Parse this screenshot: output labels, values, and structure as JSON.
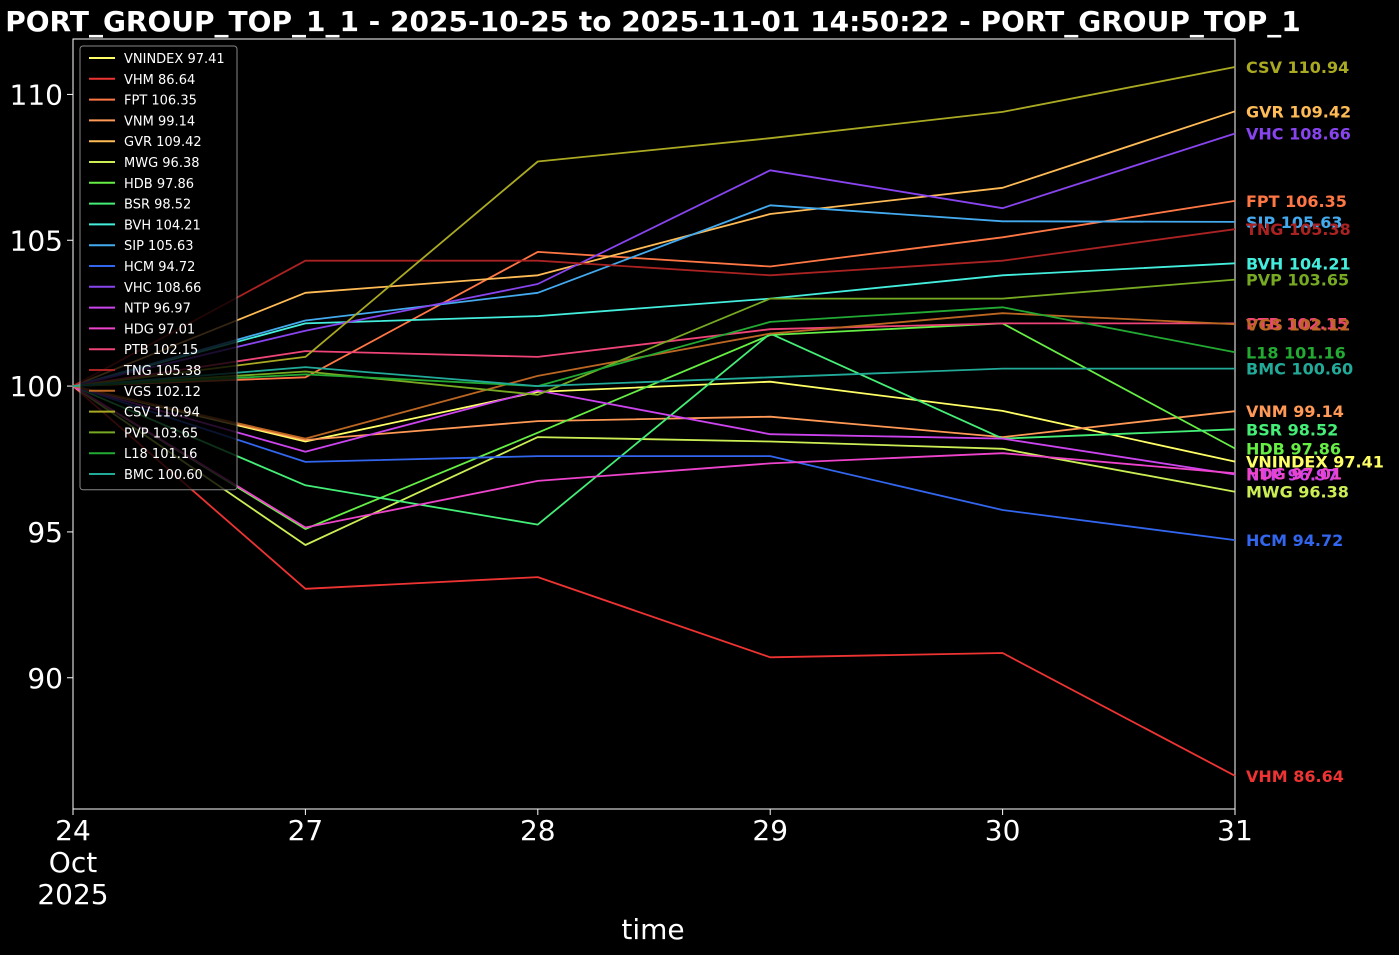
{
  "chart_data": {
    "type": "line",
    "title": "PORT_GROUP_TOP_1_1 - 2025-10-25 to 2025-11-01 14:50:22 - PORT_GROUP_TOP_1",
    "xlabel": "time",
    "ylabel": "",
    "x": [
      "2025-10-24",
      "2025-10-27",
      "2025-10-28",
      "2025-10-29",
      "2025-10-30",
      "2025-10-31"
    ],
    "x_tick_labels": [
      "24\nOct\n2025",
      "27",
      "28",
      "29",
      "30",
      "31"
    ],
    "ylim": [
      85.5,
      111.9
    ],
    "y_ticks": [
      90,
      95,
      100,
      105,
      110
    ],
    "grid": false,
    "legend_position": "top-left",
    "series": [
      {
        "name": "VNINDEX",
        "label": "VNINDEX 97.41",
        "color": "#ffff66",
        "values": [
          100,
          98.1,
          99.8,
          100.15,
          99.15,
          97.41
        ]
      },
      {
        "name": "VHM",
        "label": "VHM 86.64",
        "color": "#ee3333",
        "values": [
          100,
          93.05,
          93.45,
          90.7,
          90.85,
          86.64
        ]
      },
      {
        "name": "FPT",
        "label": "FPT 106.35",
        "color": "#ff7744",
        "values": [
          100,
          100.3,
          104.6,
          104.1,
          105.1,
          106.35
        ]
      },
      {
        "name": "VNM",
        "label": "VNM 99.14",
        "color": "#ff9955",
        "values": [
          100,
          98.15,
          98.8,
          98.95,
          98.25,
          99.14
        ]
      },
      {
        "name": "GVR",
        "label": "GVR 109.42",
        "color": "#ffbb55",
        "values": [
          100,
          103.2,
          103.8,
          105.9,
          106.8,
          109.42
        ]
      },
      {
        "name": "MWG",
        "label": "MWG 96.38",
        "color": "#ccee55",
        "values": [
          100,
          94.55,
          98.25,
          98.1,
          97.85,
          96.38
        ]
      },
      {
        "name": "HDB",
        "label": "HDB 97.86",
        "color": "#66ee44",
        "values": [
          100,
          95.1,
          98.4,
          101.75,
          102.15,
          97.86
        ]
      },
      {
        "name": "BSR",
        "label": "BSR 98.52",
        "color": "#44ee77",
        "values": [
          100,
          96.6,
          95.25,
          101.8,
          98.2,
          98.52
        ]
      },
      {
        "name": "BVH",
        "label": "BVH 104.21",
        "color": "#44eedd",
        "values": [
          100,
          102.15,
          102.4,
          103.0,
          103.8,
          104.21
        ]
      },
      {
        "name": "SIP",
        "label": "SIP 105.63",
        "color": "#44aaee",
        "values": [
          100,
          102.25,
          103.2,
          106.2,
          105.65,
          105.63
        ]
      },
      {
        "name": "HCM",
        "label": "HCM 94.72",
        "color": "#3366ee",
        "values": [
          100,
          97.4,
          97.6,
          97.6,
          95.75,
          94.72
        ]
      },
      {
        "name": "VHC",
        "label": "VHC 108.66",
        "color": "#8844ee",
        "values": [
          100,
          101.9,
          103.5,
          107.4,
          106.1,
          108.66
        ]
      },
      {
        "name": "NTP",
        "label": "NTP 96.97",
        "color": "#cc44ee",
        "values": [
          100,
          97.75,
          99.85,
          98.35,
          98.2,
          96.97
        ]
      },
      {
        "name": "HDG",
        "label": "HDG 97.01",
        "color": "#ee44cc",
        "values": [
          100,
          95.15,
          96.75,
          97.35,
          97.7,
          97.01
        ]
      },
      {
        "name": "PTB",
        "label": "PTB 102.15",
        "color": "#ee4477",
        "values": [
          100,
          101.2,
          101.0,
          101.95,
          102.15,
          102.15
        ]
      },
      {
        "name": "TNG",
        "label": "TNG 105.38",
        "color": "#aa2222",
        "values": [
          100,
          104.3,
          104.3,
          103.8,
          104.3,
          105.38
        ]
      },
      {
        "name": "VGS",
        "label": "VGS 102.12",
        "color": "#bb6622",
        "values": [
          100,
          98.2,
          100.35,
          101.8,
          102.5,
          102.12
        ]
      },
      {
        "name": "CSV",
        "label": "CSV 110.94",
        "color": "#aaaa22",
        "values": [
          100,
          101.0,
          107.7,
          108.5,
          109.4,
          110.94
        ]
      },
      {
        "name": "PVP",
        "label": "PVP 103.65",
        "color": "#77aa22",
        "values": [
          100,
          100.5,
          99.7,
          103.0,
          103.0,
          103.65
        ]
      },
      {
        "name": "L18",
        "label": "L18 101.16",
        "color": "#22aa33",
        "values": [
          100,
          100.4,
          100.0,
          102.2,
          102.7,
          101.16
        ]
      },
      {
        "name": "BMC",
        "label": "BMC 100.60",
        "color": "#22aa99",
        "values": [
          100,
          100.65,
          100.0,
          100.3,
          100.6,
          100.6
        ]
      }
    ]
  }
}
